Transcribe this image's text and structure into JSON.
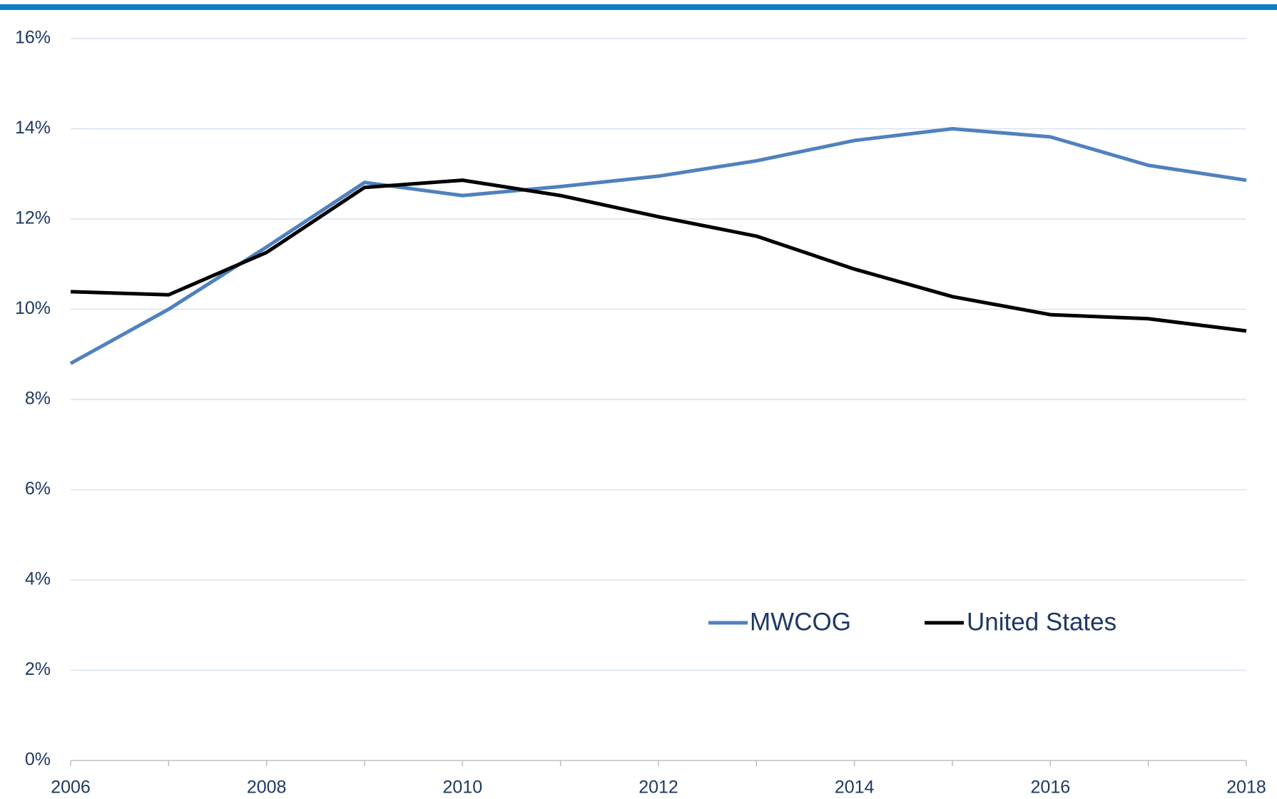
{
  "chart_data": {
    "type": "line",
    "x": [
      2006,
      2007,
      2008,
      2009,
      2010,
      2011,
      2012,
      2013,
      2014,
      2015,
      2016,
      2017,
      2018
    ],
    "series": [
      {
        "name": "MWCOG",
        "color": "#4f81bd",
        "values": [
          8.8,
          10.0,
          11.38,
          12.81,
          12.52,
          12.72,
          12.95,
          13.29,
          13.74,
          14.0,
          13.82,
          13.19,
          12.86
        ]
      },
      {
        "name": "United States",
        "color": "#000000",
        "values": [
          10.39,
          10.32,
          11.26,
          12.7,
          12.86,
          12.52,
          12.05,
          11.62,
          10.89,
          10.28,
          9.88,
          9.79,
          9.52
        ]
      }
    ],
    "xlim": [
      2006,
      2018
    ],
    "xticks": [
      2006,
      2008,
      2010,
      2012,
      2014,
      2016,
      2018
    ],
    "ylim": [
      0,
      16
    ],
    "yticks": [
      {
        "value": 0,
        "label": "0%"
      },
      {
        "value": 2,
        "label": "2%"
      },
      {
        "value": 4,
        "label": "4%"
      },
      {
        "value": 6,
        "label": "6%"
      },
      {
        "value": 8,
        "label": "8%"
      },
      {
        "value": 10,
        "label": "10%"
      },
      {
        "value": 12,
        "label": "12%"
      },
      {
        "value": 14,
        "label": "14%"
      },
      {
        "value": 16,
        "label": "16%"
      }
    ],
    "grid": true
  }
}
